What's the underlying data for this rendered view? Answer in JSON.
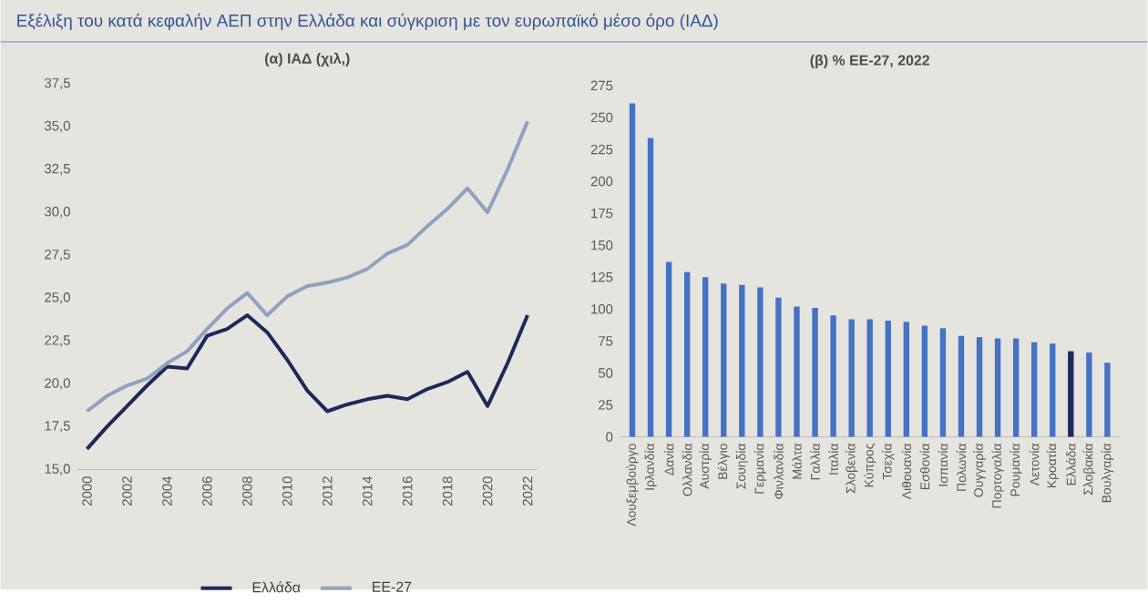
{
  "chart_data": [
    {
      "type": "line",
      "title": "Εξέλιξη του κατά κεφαλήν ΑΕΠ στην Ελλάδα και σύγκριση με τον ευρωπαϊκό μέσο όρο (ΙΑΔ)",
      "subtitle": "(α) ΙΑΔ (χιλ,)",
      "x": [
        2000,
        2001,
        2002,
        2003,
        2004,
        2005,
        2006,
        2007,
        2008,
        2009,
        2010,
        2011,
        2012,
        2013,
        2014,
        2015,
        2016,
        2017,
        2018,
        2019,
        2020,
        2021,
        2022
      ],
      "series": [
        {
          "name": "Ελλάδα",
          "color": "#1b2a5a",
          "values": [
            16.2,
            17.5,
            18.7,
            19.9,
            21.0,
            20.9,
            22.8,
            23.2,
            24.0,
            23.0,
            21.4,
            19.6,
            18.4,
            18.8,
            19.1,
            19.3,
            19.1,
            19.7,
            20.1,
            20.7,
            18.7,
            21.2,
            24.0
          ]
        },
        {
          "name": "ΕΕ-27",
          "color": "#8fa2c0",
          "values": [
            18.4,
            19.3,
            19.9,
            20.3,
            21.2,
            21.9,
            23.2,
            24.4,
            25.3,
            24.0,
            25.1,
            25.7,
            25.9,
            26.2,
            26.7,
            27.6,
            28.1,
            29.2,
            30.2,
            31.4,
            30.0,
            32.5,
            35.3
          ]
        }
      ],
      "xlim": [
        1999.5,
        2022.5
      ],
      "xticks": [
        2000,
        2002,
        2004,
        2006,
        2008,
        2010,
        2012,
        2014,
        2016,
        2018,
        2020,
        2022
      ],
      "ylim": [
        15,
        37.5
      ],
      "yticks": [
        {
          "value": 15,
          "label": "15,0"
        },
        {
          "value": 17.5,
          "label": "17,5"
        },
        {
          "value": 20,
          "label": "20,0"
        },
        {
          "value": 22.5,
          "label": "22,5"
        },
        {
          "value": 25,
          "label": "25,0"
        },
        {
          "value": 27.5,
          "label": "27,5"
        },
        {
          "value": 30,
          "label": "30,0"
        },
        {
          "value": 32.5,
          "label": "32,5"
        },
        {
          "value": 35,
          "label": "35,0"
        },
        {
          "value": 37.5,
          "label": "37,5"
        }
      ],
      "legend": "bottom",
      "line_style": "solid"
    },
    {
      "type": "bar",
      "title": "(β) % ΕΕ-27, 2022",
      "categories": [
        "Λουξεμβούργο",
        "Ιρλανδία",
        "Δανία",
        "Ολλανδία",
        "Αυστρία",
        "Βέλγιο",
        "Σουηδία",
        "Γερμανία",
        "Φινλανδία",
        "Μάλτα",
        "Γαλλία",
        "Ιταλία",
        "Σλοβενία",
        "Κύπρος",
        "Τσεχία",
        "Λιθουανία",
        "Εσθονία",
        "Ισπανία",
        "Πολωνία",
        "Ουγγαρία",
        "Πορτογαλία",
        "Ρουμανία",
        "Λετονία",
        "Κροατία",
        "Ελλάδα",
        "Σλοβακία",
        "Βουλγαρία"
      ],
      "values": [
        261,
        234,
        137,
        129,
        125,
        120,
        119,
        117,
        109,
        102,
        101,
        95,
        92,
        92,
        91,
        90,
        87,
        85,
        79,
        78,
        77,
        77,
        74,
        73,
        67,
        66,
        58
      ],
      "colors": [
        "#4472c4",
        "#4472c4",
        "#4472c4",
        "#4472c4",
        "#4472c4",
        "#4472c4",
        "#4472c4",
        "#4472c4",
        "#4472c4",
        "#4472c4",
        "#4472c4",
        "#4472c4",
        "#4472c4",
        "#4472c4",
        "#4472c4",
        "#4472c4",
        "#4472c4",
        "#4472c4",
        "#4472c4",
        "#4472c4",
        "#4472c4",
        "#4472c4",
        "#4472c4",
        "#4472c4",
        "#1b2a5a",
        "#4472c4",
        "#4472c4"
      ],
      "ylim": [
        0,
        275
      ],
      "yticks": [
        0,
        25,
        50,
        75,
        100,
        125,
        150,
        175,
        200,
        225,
        250,
        275
      ]
    }
  ]
}
